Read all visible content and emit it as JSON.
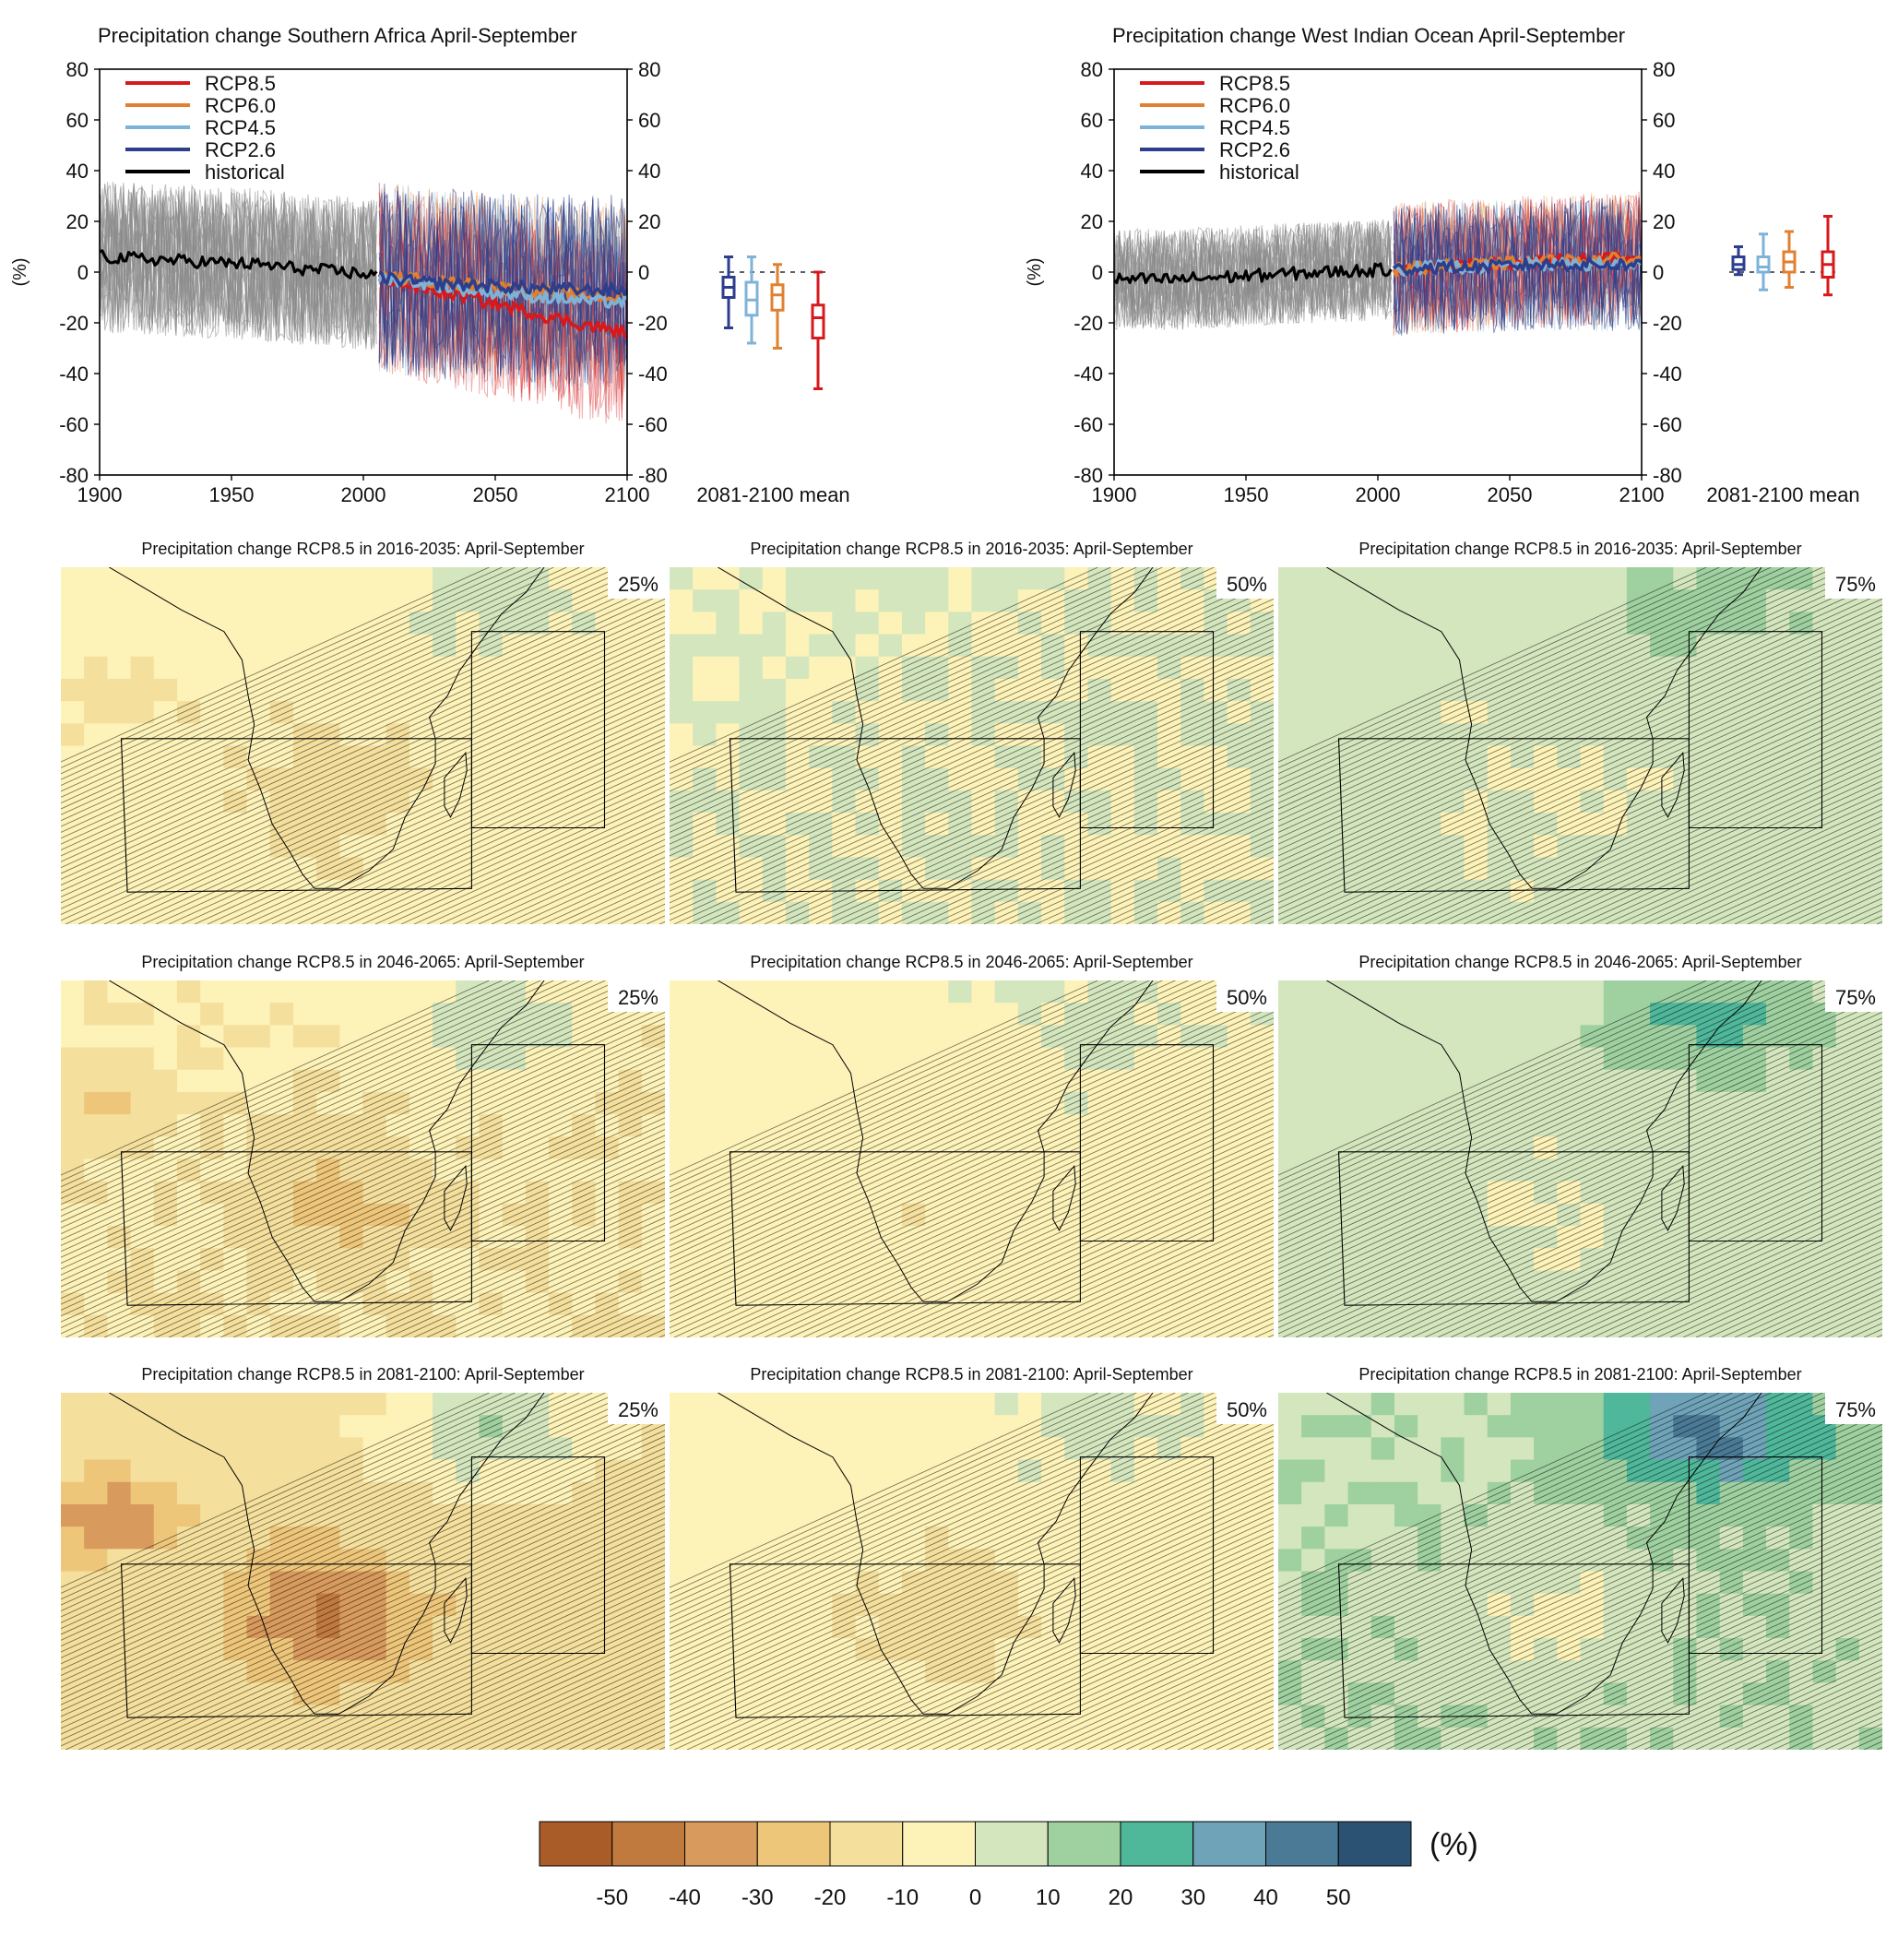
{
  "colors": {
    "rcp85": "#d7191c",
    "rcp60": "#e08030",
    "rcp45": "#7eb3d8",
    "rcp26": "#2c3e8c",
    "historical": "#000000",
    "model_spread": "#8a8a8a",
    "scale": [
      "#a95c27",
      "#c17a3e",
      "#d89a5d",
      "#eec67a",
      "#f4df9c",
      "#fdf2b8",
      "#d4e6be",
      "#9fd0a0",
      "#4fb79a",
      "#6fa3b8",
      "#4a7a95",
      "#2b5272"
    ]
  },
  "chart_data": [
    {
      "type": "line",
      "title": "Precipitation change Southern Africa April-September",
      "ylabel": "(%)",
      "xlim": [
        1900,
        2100
      ],
      "ylim": [
        -80,
        80
      ],
      "xticks": [
        1900,
        1950,
        2000,
        2050,
        2100
      ],
      "yticks": [
        80,
        60,
        40,
        20,
        0,
        -20,
        -40,
        -60,
        -80
      ],
      "grid": false,
      "legend_position": "top-left",
      "series": [
        {
          "name": "RCP8.5",
          "color_key": "rcp85",
          "x": [
            2006,
            2020,
            2040,
            2060,
            2080,
            2100
          ],
          "values": [
            -2,
            -6,
            -10,
            -15,
            -20,
            -24
          ]
        },
        {
          "name": "RCP6.0",
          "color_key": "rcp60",
          "x": [
            2006,
            2020,
            2040,
            2060,
            2080,
            2100
          ],
          "values": [
            -2,
            -3,
            -5,
            -7,
            -9,
            -10
          ]
        },
        {
          "name": "RCP4.5",
          "color_key": "rcp45",
          "x": [
            2006,
            2020,
            2040,
            2060,
            2080,
            2100
          ],
          "values": [
            -2,
            -4,
            -7,
            -9,
            -11,
            -12
          ]
        },
        {
          "name": "RCP2.6",
          "color_key": "rcp26",
          "x": [
            2006,
            2020,
            2040,
            2060,
            2080,
            2100
          ],
          "values": [
            -2,
            -4,
            -5,
            -6,
            -7,
            -7
          ]
        },
        {
          "name": "historical",
          "color_key": "historical",
          "x": [
            1900,
            1920,
            1940,
            1960,
            1980,
            2005
          ],
          "values": [
            6,
            5,
            4,
            3,
            1,
            -1
          ]
        }
      ],
      "spread": {
        "historical": [
          -35,
          40
        ],
        "scenario": [
          -55,
          45
        ]
      },
      "boxplot": {
        "label": "2081-2100 mean",
        "boxes": [
          {
            "series": "RCP2.6",
            "color_key": "rcp26",
            "min": -22,
            "q1": -10,
            "median": -6,
            "q3": -2,
            "max": 6
          },
          {
            "series": "RCP4.5",
            "color_key": "rcp45",
            "min": -28,
            "q1": -17,
            "median": -11,
            "q3": -4,
            "max": 6
          },
          {
            "series": "RCP6.0",
            "color_key": "rcp60",
            "min": -30,
            "q1": -15,
            "median": -9,
            "q3": -5,
            "max": 3
          },
          {
            "series": "RCP8.5",
            "color_key": "rcp85",
            "min": -46,
            "q1": -26,
            "median": -18,
            "q3": -13,
            "max": 0
          }
        ]
      }
    },
    {
      "type": "line",
      "title": "Precipitation change West Indian Ocean April-September",
      "ylabel": "(%)",
      "xlim": [
        1900,
        2100
      ],
      "ylim": [
        -80,
        80
      ],
      "xticks": [
        1900,
        1950,
        2000,
        2050,
        2100
      ],
      "yticks": [
        80,
        60,
        40,
        20,
        0,
        -20,
        -40,
        -60,
        -80
      ],
      "grid": false,
      "legend_position": "top-left",
      "series": [
        {
          "name": "RCP8.5",
          "color_key": "rcp85",
          "x": [
            2006,
            2020,
            2040,
            2060,
            2080,
            2100
          ],
          "values": [
            1,
            2,
            3,
            4,
            5,
            6
          ]
        },
        {
          "name": "RCP6.0",
          "color_key": "rcp60",
          "x": [
            2006,
            2020,
            2040,
            2060,
            2080,
            2100
          ],
          "values": [
            1,
            2,
            3,
            4,
            5,
            5
          ]
        },
        {
          "name": "RCP4.5",
          "color_key": "rcp45",
          "x": [
            2006,
            2020,
            2040,
            2060,
            2080,
            2100
          ],
          "values": [
            1,
            2,
            2,
            3,
            3,
            3
          ]
        },
        {
          "name": "RCP2.6",
          "color_key": "rcp26",
          "x": [
            2006,
            2020,
            2040,
            2060,
            2080,
            2100
          ],
          "values": [
            1,
            2,
            2,
            3,
            3,
            3
          ]
        },
        {
          "name": "historical",
          "color_key": "historical",
          "x": [
            1900,
            1920,
            1940,
            1960,
            1980,
            2005
          ],
          "values": [
            -3,
            -3,
            -2,
            -1,
            0,
            1
          ]
        }
      ],
      "spread": {
        "historical": [
          -25,
          25
        ],
        "scenario": [
          -30,
          40
        ]
      },
      "boxplot": {
        "label": "2081-2100 mean",
        "boxes": [
          {
            "series": "RCP2.6",
            "color_key": "rcp26",
            "min": -1,
            "q1": 1,
            "median": 3,
            "q3": 6,
            "max": 10
          },
          {
            "series": "RCP4.5",
            "color_key": "rcp45",
            "min": -7,
            "q1": 0,
            "median": 2,
            "q3": 6,
            "max": 15
          },
          {
            "series": "RCP6.0",
            "color_key": "rcp60",
            "min": -6,
            "q1": 0,
            "median": 4,
            "q3": 8,
            "max": 16
          },
          {
            "series": "RCP8.5",
            "color_key": "rcp85",
            "min": -9,
            "q1": -2,
            "median": 3,
            "q3": 8,
            "max": 22
          }
        ]
      }
    },
    {
      "type": "heatmap",
      "panels": [
        {
          "title": "Precipitation change RCP8.5 in 2016-2035: April-September",
          "percentile": "25%",
          "mean_change": -10
        },
        {
          "title": "Precipitation change RCP8.5 in 2016-2035: April-September",
          "percentile": "50%",
          "mean_change": 0
        },
        {
          "title": "Precipitation change RCP8.5 in 2016-2035: April-September",
          "percentile": "75%",
          "mean_change": 5
        },
        {
          "title": "Precipitation change RCP8.5 in 2046-2065: April-September",
          "percentile": "25%",
          "mean_change": -15
        },
        {
          "title": "Precipitation change RCP8.5 in 2046-2065: April-September",
          "percentile": "50%",
          "mean_change": -5
        },
        {
          "title": "Precipitation change RCP8.5 in 2046-2065: April-September",
          "percentile": "75%",
          "mean_change": 8
        },
        {
          "title": "Precipitation change RCP8.5 in 2081-2100: April-September",
          "percentile": "25%",
          "mean_change": -25
        },
        {
          "title": "Precipitation change RCP8.5 in 2081-2100: April-September",
          "percentile": "50%",
          "mean_change": -10
        },
        {
          "title": "Precipitation change RCP8.5 in 2081-2100: April-September",
          "percentile": "75%",
          "mean_change": 15
        }
      ],
      "colorbar": {
        "ticks": [
          "-50",
          "-40",
          "-30",
          "-20",
          "-10",
          "0",
          "10",
          "20",
          "30",
          "40",
          "50"
        ],
        "unit": "(%)"
      }
    }
  ]
}
